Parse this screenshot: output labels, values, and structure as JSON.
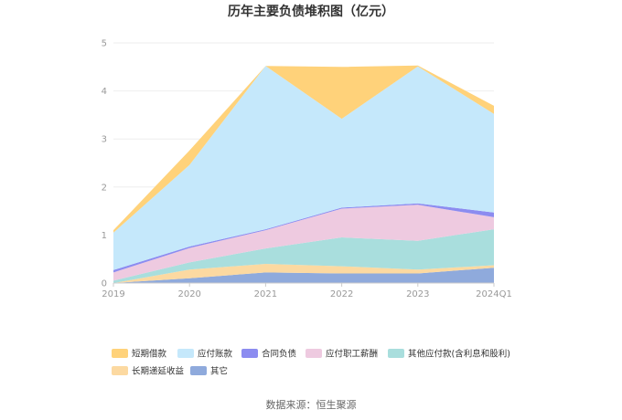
{
  "chart_data": {
    "type": "area",
    "stacked": true,
    "title": "历年主要负债堆积图（亿元）",
    "source": "数据来源：恒生聚源",
    "xlabel": "",
    "ylabel": "",
    "categories": [
      "2019",
      "2020",
      "2021",
      "2022",
      "2023",
      "2024Q1"
    ],
    "ylim": [
      0,
      5
    ],
    "yticks": [
      "0",
      "1",
      "2",
      "3",
      "4",
      "5"
    ],
    "grid": true,
    "legend_position": "bottom",
    "series": [
      {
        "name": "其它",
        "color": "#8faadc",
        "values": [
          0.0,
          0.1,
          0.22,
          0.2,
          0.2,
          0.32
        ]
      },
      {
        "name": "长期递延收益",
        "color": "#fcd9a1",
        "values": [
          0.0,
          0.18,
          0.18,
          0.15,
          0.08,
          0.05
        ]
      },
      {
        "name": "其他应付款(含利息和股利)",
        "color": "#a9dedd",
        "values": [
          0.05,
          0.15,
          0.32,
          0.6,
          0.6,
          0.75
        ]
      },
      {
        "name": "应付职工薪酬",
        "color": "#eecae0",
        "values": [
          0.17,
          0.3,
          0.38,
          0.6,
          0.75,
          0.25
        ]
      },
      {
        "name": "合同负债",
        "color": "#8c8cf0",
        "values": [
          0.05,
          0.03,
          0.02,
          0.02,
          0.03,
          0.1
        ]
      },
      {
        "name": "应付账款",
        "color": "#c5e8fb",
        "values": [
          0.78,
          1.7,
          3.4,
          1.85,
          2.85,
          2.05
        ]
      },
      {
        "name": "短期借款",
        "color": "#ffd27a",
        "values": [
          0.05,
          0.3,
          0.0,
          1.08,
          0.02,
          0.17
        ]
      }
    ],
    "legend_order": [
      "短期借款",
      "应付账款",
      "合同负债",
      "应付职工薪酬",
      "其他应付款(含利息和股利)",
      "长期递延收益",
      "其它"
    ]
  },
  "colors": {
    "axis": "#cccccc",
    "grid": "#eeeeee"
  }
}
